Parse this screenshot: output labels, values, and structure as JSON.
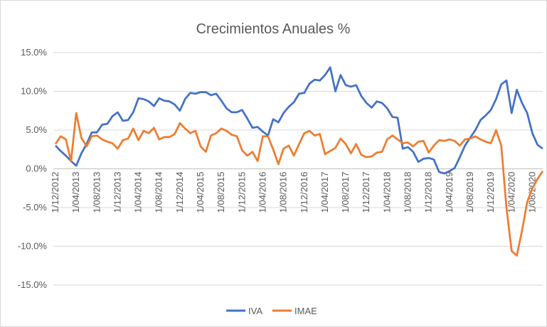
{
  "chart_data": {
    "type": "line",
    "title": "Crecimientos Anuales %",
    "categories": [
      "1/12/2012",
      null,
      null,
      null,
      "1/04/2013",
      null,
      null,
      null,
      "1/08/2013",
      null,
      null,
      null,
      "1/12/2013",
      null,
      null,
      null,
      "1/04/2014",
      null,
      null,
      null,
      "1/08/2014",
      null,
      null,
      null,
      "1/12/2014",
      null,
      null,
      null,
      "1/04/2015",
      null,
      null,
      null,
      "1/08/2015",
      null,
      null,
      null,
      "1/12/2015",
      null,
      null,
      null,
      "1/04/2016",
      null,
      null,
      null,
      "1/08/2016",
      null,
      null,
      null,
      "1/12/2016",
      null,
      null,
      null,
      "1/04/2017",
      null,
      null,
      null,
      "1/08/2017",
      null,
      null,
      null,
      "1/12/2017",
      null,
      null,
      null,
      "1/04/2018",
      null,
      null,
      null,
      "1/08/2018",
      null,
      null,
      null,
      "1/12/2018",
      null,
      null,
      null,
      "1/04/2019",
      null,
      null,
      null,
      "1/08/2019",
      null,
      null,
      null,
      "1/12/2019",
      null,
      null,
      null,
      "1/04/2020",
      null,
      null,
      null,
      "1/08/2020",
      null,
      null
    ],
    "series": [
      {
        "name": "IVA",
        "color": "#4472c4",
        "values": [
          3.0,
          2.3,
          1.7,
          1.0,
          0.4,
          2.0,
          3.2,
          4.7,
          4.7,
          5.7,
          5.8,
          6.8,
          7.3,
          6.2,
          6.3,
          7.3,
          9.1,
          9.0,
          8.7,
          8.1,
          9.1,
          8.8,
          8.7,
          8.3,
          7.5,
          9.0,
          9.8,
          9.7,
          9.9,
          9.9,
          9.5,
          9.7,
          8.8,
          7.8,
          7.3,
          7.3,
          7.6,
          6.5,
          5.3,
          5.4,
          4.8,
          4.3,
          6.4,
          6.0,
          7.2,
          8.0,
          8.6,
          9.7,
          9.8,
          11.0,
          11.5,
          11.4,
          12.1,
          13.1,
          10.0,
          12.1,
          10.8,
          10.6,
          10.8,
          9.4,
          8.5,
          7.9,
          8.7,
          8.5,
          7.8,
          6.7,
          6.6,
          2.6,
          2.8,
          2.2,
          0.9,
          1.3,
          1.4,
          1.2,
          -0.4,
          -0.6,
          -0.3,
          0.1,
          1.5,
          3.0,
          4.0,
          5.0,
          6.3,
          6.9,
          7.6,
          9.0,
          10.9,
          11.4,
          7.2,
          10.2,
          8.5,
          7.2,
          4.6,
          3.1,
          2.6
        ]
      },
      {
        "name": "IMAE",
        "color": "#ed7d31",
        "values": [
          3.2,
          4.2,
          3.8,
          1.0,
          7.2,
          4.0,
          2.9,
          4.2,
          4.3,
          3.8,
          3.5,
          3.3,
          2.6,
          3.7,
          3.9,
          5.2,
          3.7,
          4.9,
          4.6,
          5.3,
          3.8,
          4.1,
          4.1,
          4.5,
          5.9,
          5.2,
          4.6,
          4.9,
          2.9,
          2.2,
          4.3,
          4.6,
          5.2,
          4.9,
          4.4,
          4.2,
          2.4,
          1.7,
          2.2,
          1.0,
          4.2,
          4.2,
          2.5,
          0.6,
          2.6,
          3.0,
          1.7,
          3.2,
          4.6,
          4.9,
          4.3,
          4.5,
          1.9,
          2.3,
          2.7,
          3.9,
          3.2,
          2.0,
          3.2,
          1.8,
          1.5,
          1.6,
          2.1,
          2.2,
          3.8,
          4.3,
          3.8,
          3.3,
          3.4,
          2.9,
          3.5,
          3.6,
          2.1,
          3.0,
          3.7,
          3.6,
          3.8,
          3.6,
          3.0,
          3.8,
          3.9,
          4.2,
          3.8,
          3.5,
          3.3,
          5.0,
          3.0,
          -5.0,
          -10.6,
          -11.2,
          -8.0,
          -4.3,
          -2.5,
          -1.3,
          -0.3
        ]
      }
    ],
    "ylim": [
      -15,
      15
    ],
    "yticks": [
      {
        "value": 15,
        "label": "15.0%"
      },
      {
        "value": 10,
        "label": "10.0%"
      },
      {
        "value": 5,
        "label": "5.0%"
      },
      {
        "value": 0,
        "label": "0.0%"
      },
      {
        "value": -5,
        "label": "-5.0%"
      },
      {
        "value": -10,
        "label": "-10.0%"
      },
      {
        "value": -15,
        "label": "-15.0%"
      }
    ],
    "grid": true,
    "legend": "bottom"
  }
}
